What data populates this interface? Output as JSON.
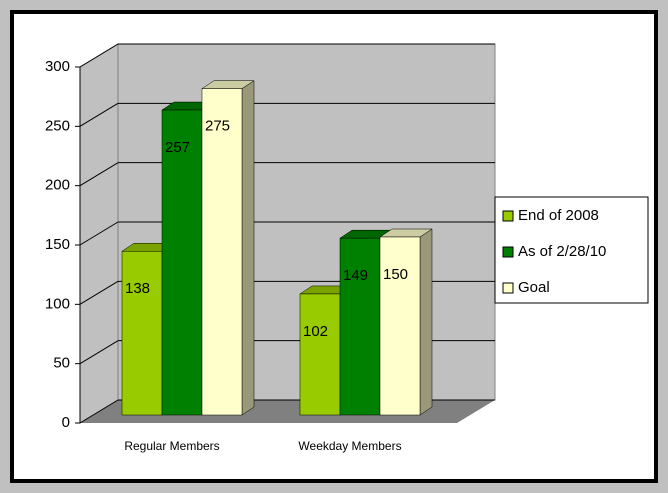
{
  "chart_data": {
    "type": "bar3d",
    "categories": [
      "Regular Members",
      "Weekday Members"
    ],
    "series": [
      {
        "name": "End of 2008",
        "color": "#99cc00",
        "values": [
          138,
          102
        ]
      },
      {
        "name": "As of 2/28/10",
        "color": "#008000",
        "values": [
          257,
          149
        ]
      },
      {
        "name": "Goal",
        "color": "#ffffcc",
        "values": [
          275,
          150
        ]
      }
    ],
    "ylim": [
      0,
      300
    ],
    "yticks": [
      0,
      50,
      100,
      150,
      200,
      250,
      300
    ],
    "grid": true,
    "legend": "right",
    "show_value_labels": true
  }
}
